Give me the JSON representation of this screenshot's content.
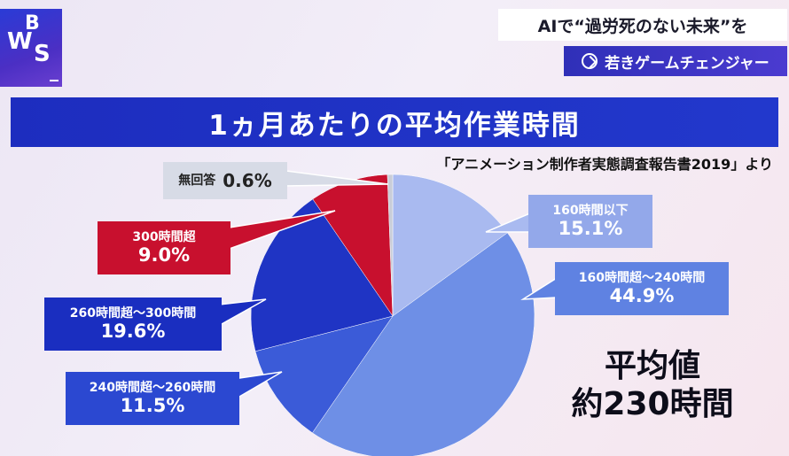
{
  "logo": {
    "letters": [
      "W",
      "B",
      "S"
    ]
  },
  "header": {
    "headline": "AIで“過労死のない未来”を",
    "tagline": "若きゲームチェンジャー"
  },
  "chart_data": {
    "type": "pie",
    "title": "1ヵ月あたりの平均作業時間",
    "source": "「アニメーション制作者実態調査報告書2019」より",
    "categories": [
      "160時間以下",
      "160時間超〜240時間",
      "240時間超〜260時間",
      "260時間超〜300時間",
      "300時間超",
      "無回答"
    ],
    "values": [
      15.1,
      44.9,
      11.5,
      19.6,
      9.0,
      0.6
    ],
    "value_labels": [
      "15.1%",
      "44.9%",
      "11.5%",
      "19.6%",
      "9.0%",
      "0.6%"
    ],
    "colors": [
      "#a9baf0",
      "#6e8fe6",
      "#3b5bd8",
      "#1f34c4",
      "#c8102e",
      "#c9cdd8"
    ],
    "annotation": {
      "label": "平均値",
      "value": "約230時間"
    }
  }
}
